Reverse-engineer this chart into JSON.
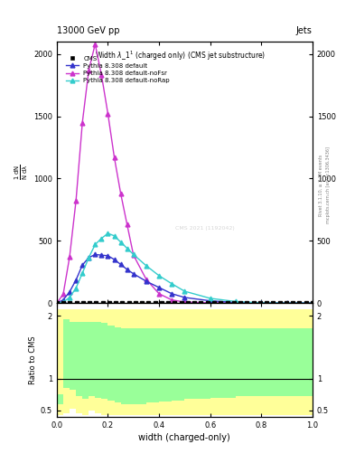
{
  "title_top": "13000 GeV pp",
  "title_right": "Jets",
  "xlabel": "width (charged-only)",
  "ylabel_ratio": "Ratio to CMS",
  "cms_watermark": "CMS 2021 (1192042)",
  "pythia_default_x": [
    0.0,
    0.025,
    0.05,
    0.075,
    0.1,
    0.125,
    0.15,
    0.175,
    0.2,
    0.225,
    0.25,
    0.275,
    0.3,
    0.35,
    0.4,
    0.45,
    0.5,
    0.6,
    0.7,
    0.8,
    0.9,
    1.0
  ],
  "pythia_default_y": [
    0,
    25,
    90,
    185,
    305,
    365,
    390,
    385,
    380,
    350,
    310,
    270,
    235,
    175,
    125,
    75,
    45,
    18,
    4,
    1,
    0,
    0
  ],
  "pythia_nofsr_x": [
    0.0,
    0.025,
    0.05,
    0.075,
    0.1,
    0.125,
    0.15,
    0.175,
    0.2,
    0.225,
    0.25,
    0.275,
    0.3,
    0.35,
    0.4,
    0.45,
    0.5,
    0.6,
    0.7,
    0.8,
    0.9,
    1.0
  ],
  "pythia_nofsr_y": [
    0,
    70,
    370,
    820,
    1450,
    1870,
    2080,
    1830,
    1520,
    1170,
    880,
    630,
    385,
    190,
    75,
    25,
    8,
    2,
    0,
    0,
    0,
    0
  ],
  "pythia_norap_x": [
    0.0,
    0.025,
    0.05,
    0.075,
    0.1,
    0.125,
    0.15,
    0.175,
    0.2,
    0.225,
    0.25,
    0.275,
    0.3,
    0.35,
    0.4,
    0.45,
    0.5,
    0.6,
    0.7,
    0.8,
    0.9,
    1.0
  ],
  "pythia_norap_y": [
    0,
    8,
    45,
    120,
    240,
    365,
    470,
    520,
    560,
    540,
    490,
    440,
    390,
    300,
    220,
    155,
    95,
    38,
    12,
    2,
    0,
    0
  ],
  "color_default": "#3333cc",
  "color_nofsr": "#cc33cc",
  "color_norap": "#33cccc",
  "color_cms": "#000000",
  "ylim_main": [
    0,
    2100
  ],
  "ylim_ratio": [
    0.4,
    2.2
  ],
  "xlim": [
    0.0,
    1.0
  ],
  "ratio_x_edges": [
    0.0,
    0.025,
    0.05,
    0.075,
    0.1,
    0.125,
    0.15,
    0.175,
    0.2,
    0.225,
    0.25,
    0.3,
    0.35,
    0.4,
    0.45,
    0.5,
    0.6,
    0.7,
    1.0
  ],
  "ratio_green_lo": [
    0.6,
    0.85,
    0.82,
    0.72,
    0.68,
    0.72,
    0.7,
    0.68,
    0.65,
    0.62,
    0.6,
    0.6,
    0.62,
    0.64,
    0.66,
    0.68,
    0.7,
    0.72
  ],
  "ratio_green_hi": [
    0.75,
    1.95,
    1.9,
    1.9,
    1.9,
    1.9,
    1.9,
    1.88,
    1.85,
    1.82,
    1.8,
    1.8,
    1.8,
    1.8,
    1.8,
    1.8,
    1.8,
    1.8
  ],
  "ratio_yellow_lo": [
    0.42,
    0.45,
    0.52,
    0.45,
    0.42,
    0.5,
    0.45,
    0.42,
    0.42,
    0.42,
    0.42,
    0.42,
    0.42,
    0.42,
    0.42,
    0.42,
    0.42,
    0.42
  ],
  "ratio_yellow_hi": [
    2.1,
    2.1,
    2.1,
    2.1,
    2.1,
    2.1,
    2.1,
    2.1,
    2.1,
    2.1,
    2.1,
    2.1,
    2.1,
    2.1,
    2.1,
    2.1,
    2.1,
    2.1
  ]
}
